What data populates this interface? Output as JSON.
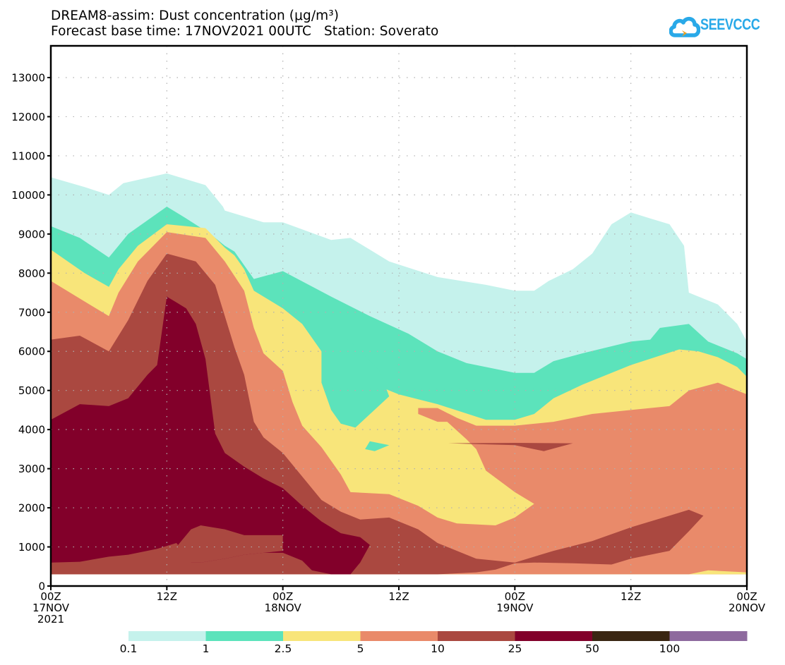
{
  "header": {
    "title_line1": "DREAM8-assim: Dust concentration (μg/m³)",
    "title_line2": "Forecast base time: 17NOV2021 00UTC   Station: Soverato",
    "logo_text": "SEEVCCC",
    "logo_icon": "cloud-arrow-icon",
    "logo_colors": {
      "cloud": "#29a9e8",
      "arrow": "#e8a020"
    }
  },
  "chart_data": {
    "type": "heatmap",
    "subtype": "filled-contour time-height cross-section",
    "title": "DREAM8-assim: Dust concentration (μg/m³)",
    "subtitle": "Forecast base time: 17NOV2021 00UTC   Station: Soverato",
    "xlabel": "",
    "ylabel": "",
    "x_unit": "hours since 17NOV2021 00Z",
    "y_unit": "m",
    "xlim": [
      0,
      72
    ],
    "ylim": [
      0,
      13700
    ],
    "grid": true,
    "yticks": [
      0,
      1000,
      2000,
      3000,
      4000,
      5000,
      6000,
      7000,
      8000,
      9000,
      10000,
      11000,
      12000,
      13000
    ],
    "xticks": [
      {
        "hour": 0,
        "label": [
          "00Z",
          "17NOV",
          "2021"
        ]
      },
      {
        "hour": 12,
        "label": [
          "12Z"
        ]
      },
      {
        "hour": 24,
        "label": [
          "00Z",
          "18NOV"
        ]
      },
      {
        "hour": 36,
        "label": [
          "12Z"
        ]
      },
      {
        "hour": 48,
        "label": [
          "00Z",
          "19NOV"
        ]
      },
      {
        "hour": 60,
        "label": [
          "12Z"
        ]
      },
      {
        "hour": 72,
        "label": [
          "00Z",
          "20NOV"
        ]
      }
    ],
    "colorbar": {
      "placement": "bottom",
      "levels": [
        "0.1",
        "1",
        "2.5",
        "5",
        "10",
        "25",
        "50",
        "100"
      ],
      "colors": [
        "#c5f2ec",
        "#5ce3bb",
        "#f8e57a",
        "#e98a6a",
        "#aa4840",
        "#82002a",
        "#3a2612",
        "#8e6a9e"
      ]
    },
    "contour_regions": [
      {
        "level": "0.1",
        "color": "#c5f2ec",
        "points": [
          [
            0,
            300
          ],
          [
            0,
            10450
          ],
          [
            3.5,
            10200
          ],
          [
            6,
            10000
          ],
          [
            7.5,
            10300
          ],
          [
            12,
            10550
          ],
          [
            16,
            10250
          ],
          [
            17.8,
            9700
          ],
          [
            18,
            9600
          ],
          [
            22,
            9300
          ],
          [
            24,
            9300
          ],
          [
            29,
            8850
          ],
          [
            31,
            8900
          ],
          [
            33,
            8600
          ],
          [
            35,
            8300
          ],
          [
            40,
            7900
          ],
          [
            45,
            7700
          ],
          [
            48,
            7550
          ],
          [
            50,
            7550
          ],
          [
            51.5,
            7800
          ],
          [
            54,
            8100
          ],
          [
            56,
            8500
          ],
          [
            58,
            9250
          ],
          [
            60,
            9550
          ],
          [
            62,
            9400
          ],
          [
            64,
            9250
          ],
          [
            65.5,
            8700
          ],
          [
            66,
            7500
          ],
          [
            69,
            7200
          ],
          [
            71,
            6700
          ],
          [
            72,
            6250
          ],
          [
            72,
            300
          ]
        ]
      },
      {
        "level": "1",
        "color": "#5ce3bb",
        "points": [
          [
            0,
            300
          ],
          [
            0,
            9200
          ],
          [
            3,
            8900
          ],
          [
            6,
            8400
          ],
          [
            7,
            8700
          ],
          [
            8,
            9000
          ],
          [
            12,
            9700
          ],
          [
            14,
            9400
          ],
          [
            16.5,
            9000
          ],
          [
            18,
            8700
          ],
          [
            19,
            8550
          ],
          [
            21,
            7850
          ],
          [
            24,
            8050
          ],
          [
            29,
            7400
          ],
          [
            33,
            6900
          ],
          [
            37,
            6450
          ],
          [
            40,
            6000
          ],
          [
            43,
            5700
          ],
          [
            48,
            5450
          ],
          [
            50,
            5450
          ],
          [
            52,
            5750
          ],
          [
            55,
            5950
          ],
          [
            60,
            6250
          ],
          [
            62,
            6300
          ],
          [
            63,
            6600
          ],
          [
            66,
            6700
          ],
          [
            68,
            6250
          ],
          [
            71,
            5950
          ],
          [
            72,
            5800
          ],
          [
            72,
            300
          ]
        ]
      },
      {
        "level": "2.5",
        "color": "#f8e57a",
        "points": [
          [
            0,
            300
          ],
          [
            0,
            8600
          ],
          [
            3.5,
            8000
          ],
          [
            6,
            7650
          ],
          [
            7,
            8100
          ],
          [
            9,
            8700
          ],
          [
            12,
            9250
          ],
          [
            16,
            9150
          ],
          [
            18,
            8650
          ],
          [
            19,
            8450
          ],
          [
            20,
            8100
          ],
          [
            21,
            7550
          ],
          [
            24,
            7100
          ],
          [
            26,
            6700
          ],
          [
            28,
            6000
          ],
          [
            29,
            5600
          ],
          [
            32,
            5200
          ],
          [
            33,
            5200
          ],
          [
            36,
            4900
          ],
          [
            40,
            4650
          ],
          [
            45,
            4250
          ],
          [
            48,
            4250
          ],
          [
            50,
            4400
          ],
          [
            52,
            4800
          ],
          [
            55,
            5150
          ],
          [
            60,
            5650
          ],
          [
            65,
            6050
          ],
          [
            67,
            6000
          ],
          [
            69,
            5850
          ],
          [
            71,
            5600
          ],
          [
            72,
            5350
          ],
          [
            72,
            300
          ]
        ]
      },
      {
        "level": "5",
        "color": "#e98a6a",
        "points": [
          [
            0,
            300
          ],
          [
            0,
            7800
          ],
          [
            4,
            7200
          ],
          [
            6,
            6900
          ],
          [
            7,
            7500
          ],
          [
            9,
            8300
          ],
          [
            12,
            9050
          ],
          [
            16,
            8900
          ],
          [
            18,
            8300
          ],
          [
            20,
            7550
          ],
          [
            21,
            6600
          ],
          [
            22,
            5950
          ],
          [
            24,
            5500
          ],
          [
            25,
            4700
          ],
          [
            26,
            4100
          ],
          [
            28,
            3550
          ],
          [
            30,
            2850
          ],
          [
            31,
            2400
          ],
          [
            35,
            2350
          ],
          [
            38,
            2050
          ],
          [
            40,
            1750
          ],
          [
            42,
            1600
          ],
          [
            46,
            1550
          ],
          [
            48,
            1750
          ],
          [
            50,
            2100
          ],
          [
            48,
            2400
          ],
          [
            45,
            2950
          ],
          [
            44,
            3500
          ],
          [
            43,
            3750
          ],
          [
            41,
            4200
          ],
          [
            40,
            4200
          ],
          [
            38,
            4400
          ],
          [
            38,
            4550
          ],
          [
            40,
            4550
          ],
          [
            42,
            4300
          ],
          [
            44,
            4100
          ],
          [
            48,
            4100
          ],
          [
            52,
            4200
          ],
          [
            56,
            4400
          ],
          [
            60,
            4500
          ],
          [
            64,
            4600
          ],
          [
            66,
            5000
          ],
          [
            69,
            5200
          ],
          [
            72,
            4900
          ],
          [
            72,
            300
          ]
        ]
      },
      {
        "level": "10",
        "color": "#aa4840",
        "points": [
          [
            0,
            300
          ],
          [
            0,
            6300
          ],
          [
            3,
            6400
          ],
          [
            6,
            6000
          ],
          [
            8,
            6800
          ],
          [
            10,
            7800
          ],
          [
            12,
            8500
          ],
          [
            15,
            8300
          ],
          [
            17,
            7700
          ],
          [
            18,
            6900
          ],
          [
            19,
            6100
          ],
          [
            20,
            5400
          ],
          [
            21,
            4200
          ],
          [
            22,
            3800
          ],
          [
            24,
            3400
          ],
          [
            26,
            2800
          ],
          [
            28,
            2200
          ],
          [
            30,
            1900
          ],
          [
            32,
            1700
          ],
          [
            35,
            1750
          ],
          [
            38,
            1450
          ],
          [
            40,
            1100
          ],
          [
            42,
            900
          ],
          [
            44,
            700
          ],
          [
            48,
            600
          ],
          [
            52,
            900
          ],
          [
            56,
            1150
          ],
          [
            60,
            1500
          ],
          [
            64,
            1800
          ],
          [
            66,
            1950
          ],
          [
            67.5,
            1800
          ],
          [
            66,
            1400
          ],
          [
            64,
            900
          ],
          [
            60,
            700
          ],
          [
            58,
            550
          ],
          [
            54,
            580
          ],
          [
            50,
            600
          ],
          [
            48,
            580
          ],
          [
            46,
            420
          ],
          [
            44,
            350
          ],
          [
            40,
            300
          ],
          [
            38,
            300
          ],
          [
            36,
            300
          ],
          [
            34,
            300
          ],
          [
            32,
            300
          ],
          [
            30,
            300
          ],
          [
            28,
            300
          ],
          [
            26,
            300
          ],
          [
            24,
            300
          ],
          [
            12,
            300
          ],
          [
            0,
            300
          ]
        ]
      },
      {
        "level": "25",
        "color": "#82002a",
        "points": [
          [
            0,
            600
          ],
          [
            0,
            4250
          ],
          [
            3,
            4650
          ],
          [
            6,
            4600
          ],
          [
            8,
            4800
          ],
          [
            10,
            5400
          ],
          [
            11,
            5650
          ],
          [
            12,
            7400
          ],
          [
            14,
            7100
          ],
          [
            15,
            6700
          ],
          [
            16,
            5800
          ],
          [
            17,
            3900
          ],
          [
            18,
            3400
          ],
          [
            20,
            3050
          ],
          [
            22,
            2750
          ],
          [
            24,
            2500
          ],
          [
            26,
            2050
          ],
          [
            28,
            1650
          ],
          [
            30,
            1350
          ],
          [
            32,
            1250
          ],
          [
            33,
            1050
          ],
          [
            32,
            600
          ],
          [
            31,
            300
          ],
          [
            29,
            300
          ],
          [
            27,
            400
          ],
          [
            26,
            650
          ],
          [
            24,
            850
          ],
          [
            22,
            850
          ],
          [
            20,
            800
          ],
          [
            18,
            700
          ],
          [
            15.5,
            600
          ],
          [
            14.5,
            600
          ],
          [
            13,
            1100
          ],
          [
            11,
            950
          ],
          [
            8,
            800
          ],
          [
            6,
            750
          ],
          [
            3,
            620
          ],
          [
            0,
            600
          ]
        ]
      },
      {
        "level": "10",
        "color": "#aa4840",
        "points": [
          [
            41,
            3650
          ],
          [
            48,
            3600
          ],
          [
            51,
            3450
          ],
          [
            54,
            3650
          ],
          [
            48,
            3660
          ],
          [
            41,
            3650
          ]
        ]
      },
      {
        "level": "10",
        "color": "#aa4840",
        "points": [
          [
            12,
            600
          ],
          [
            12,
            950
          ],
          [
            13,
            1000
          ],
          [
            14.5,
            1450
          ],
          [
            15.5,
            1550
          ],
          [
            18,
            1450
          ],
          [
            20,
            1300
          ],
          [
            24,
            1300
          ],
          [
            24,
            900
          ],
          [
            22,
            850
          ],
          [
            20,
            800
          ],
          [
            18,
            700
          ],
          [
            15.5,
            600
          ],
          [
            14.5,
            600
          ],
          [
            12,
            600
          ]
        ]
      },
      {
        "level": "1",
        "color": "#5ce3bb",
        "points": [
          [
            20,
            2000
          ],
          [
            20,
            2000
          ]
        ]
      },
      {
        "level": "1",
        "color": "#5ce3bb",
        "points": [
          [
            28,
            6100
          ],
          [
            29,
            6600
          ],
          [
            31,
            6250
          ],
          [
            34,
            5500
          ],
          [
            35,
            4850
          ],
          [
            31.5,
            4050
          ],
          [
            30,
            4150
          ],
          [
            29,
            4500
          ],
          [
            28,
            5200
          ],
          [
            28,
            6100
          ]
        ]
      },
      {
        "level": "1",
        "color": "#5ce3bb",
        "points": [
          [
            32.5,
            3500
          ],
          [
            33,
            3700
          ],
          [
            35,
            3600
          ],
          [
            33.5,
            3450
          ],
          [
            32.5,
            3500
          ]
        ]
      },
      {
        "level": "2.5",
        "color": "#f8e57a",
        "points": [
          [
            66,
            300
          ],
          [
            68,
            400
          ],
          [
            72,
            350
          ],
          [
            72,
            300
          ],
          [
            66,
            300
          ]
        ]
      }
    ]
  }
}
